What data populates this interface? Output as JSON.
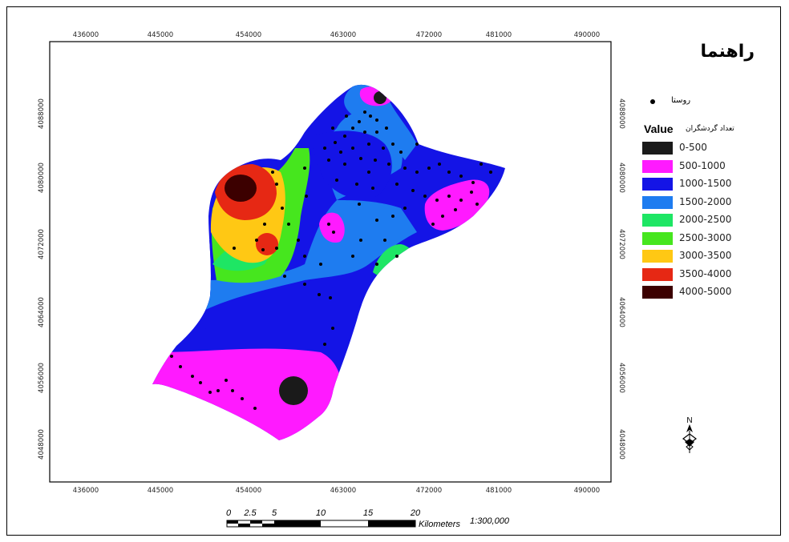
{
  "map": {
    "x_ticks": [
      "436000",
      "445000",
      "454000",
      "463000",
      "472000",
      "481000",
      "490000"
    ],
    "y_ticks": [
      "4088000",
      "4080000",
      "4072000",
      "4064000",
      "4056000",
      "4048000"
    ]
  },
  "legend": {
    "title": "راهنما",
    "village_label": "روستا",
    "value_title": "Value",
    "value_subtitle": "تعداد گردشگران",
    "classes": [
      {
        "label": "0-500",
        "color": "#1a1a1a"
      },
      {
        "label": "500-1000",
        "color": "#ff1aff"
      },
      {
        "label": "1000-1500",
        "color": "#1414e6"
      },
      {
        "label": "1500-2000",
        "color": "#1e7cf0"
      },
      {
        "label": "2000-2500",
        "color": "#1ee664"
      },
      {
        "label": "2500-3000",
        "color": "#46e61e"
      },
      {
        "label": "3000-3500",
        "color": "#ffc814"
      },
      {
        "label": "3500-4000",
        "color": "#e62814"
      },
      {
        "label": "4000-5000",
        "color": "#3c0000"
      }
    ]
  },
  "scale_bar": {
    "numbers": [
      "0",
      "2.5",
      "5",
      "10",
      "15",
      "20"
    ],
    "unit": "Kilometers",
    "ratio": "1:300,000"
  },
  "north_arrow": {
    "letter": "N"
  }
}
